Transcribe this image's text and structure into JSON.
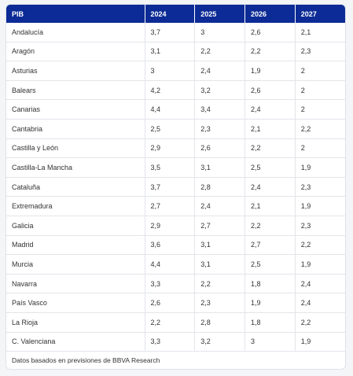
{
  "table": {
    "header": [
      "PIB",
      "2024",
      "2025",
      "2026",
      "2027"
    ],
    "rows": [
      [
        "Andalucía",
        "3,7",
        "3",
        "2,6",
        "2,1"
      ],
      [
        "Aragón",
        "3,1",
        "2,2",
        "2,2",
        "2,3"
      ],
      [
        "Asturias",
        "3",
        "2,4",
        "1,9",
        "2"
      ],
      [
        "Balears",
        "4,2",
        "3,2",
        "2,6",
        "2"
      ],
      [
        "Canarias",
        "4,4",
        "3,4",
        "2,4",
        "2"
      ],
      [
        "Cantabria",
        "2,5",
        "2,3",
        "2,1",
        "2,2"
      ],
      [
        "Castilla y León",
        "2,9",
        "2,6",
        "2,2",
        "2"
      ],
      [
        "Castilla-La Mancha",
        "3,5",
        "3,1",
        "2,5",
        "1,9"
      ],
      [
        "Cataluña",
        "3,7",
        "2,8",
        "2,4",
        "2,3"
      ],
      [
        "Extremadura",
        "2,7",
        "2,4",
        "2,1",
        "1,9"
      ],
      [
        "Galicia",
        "2,9",
        "2,7",
        "2,2",
        "2,3"
      ],
      [
        "Madrid",
        "3,6",
        "3,1",
        "2,7",
        "2,2"
      ],
      [
        "Murcia",
        "4,4",
        "3,1",
        "2,5",
        "1,9"
      ],
      [
        "Navarra",
        "3,3",
        "2,2",
        "1,8",
        "2,4"
      ],
      [
        "País Vasco",
        "2,6",
        "2,3",
        "1,9",
        "2,4"
      ],
      [
        "La Rioja",
        "2,2",
        "2,8",
        "1,8",
        "2,2"
      ],
      [
        "C. Valenciana",
        "3,3",
        "3,2",
        "3",
        "1,9"
      ]
    ],
    "footnote": "Datos basados en previsiones de BBVA Research"
  }
}
